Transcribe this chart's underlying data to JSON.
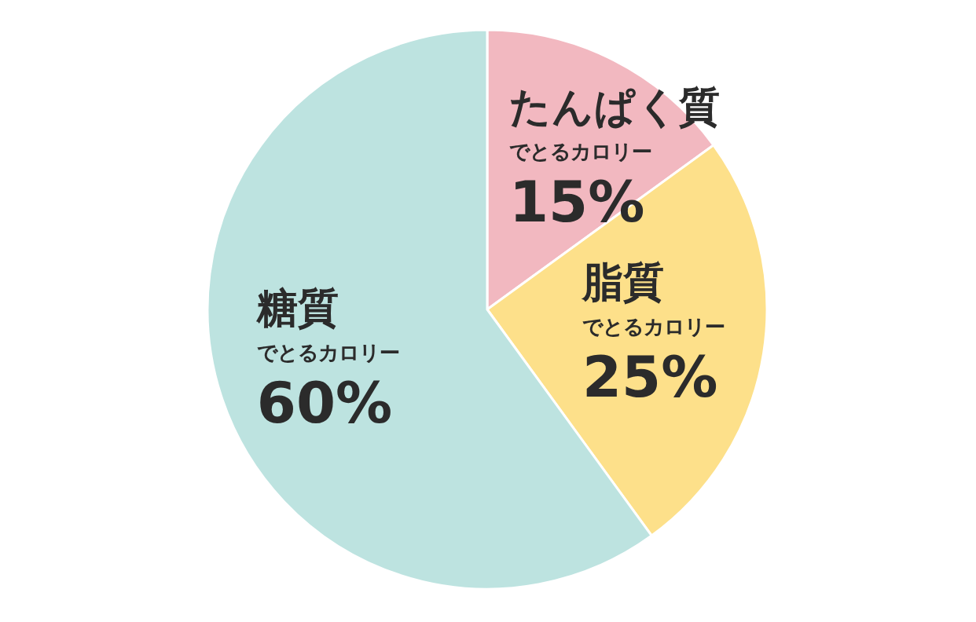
{
  "chart_data": {
    "type": "pie",
    "categories": [
      "たんぱく質",
      "脂質",
      "糖質"
    ],
    "values": [
      15,
      25,
      60
    ],
    "colors": [
      "#f2b8c0",
      "#fde08a",
      "#bde3e0"
    ],
    "value_labels": [
      "15%",
      "25%",
      "60%"
    ],
    "annotations": [
      "でとるカロリー",
      "でとるカロリー",
      "でとるカロリー"
    ]
  }
}
